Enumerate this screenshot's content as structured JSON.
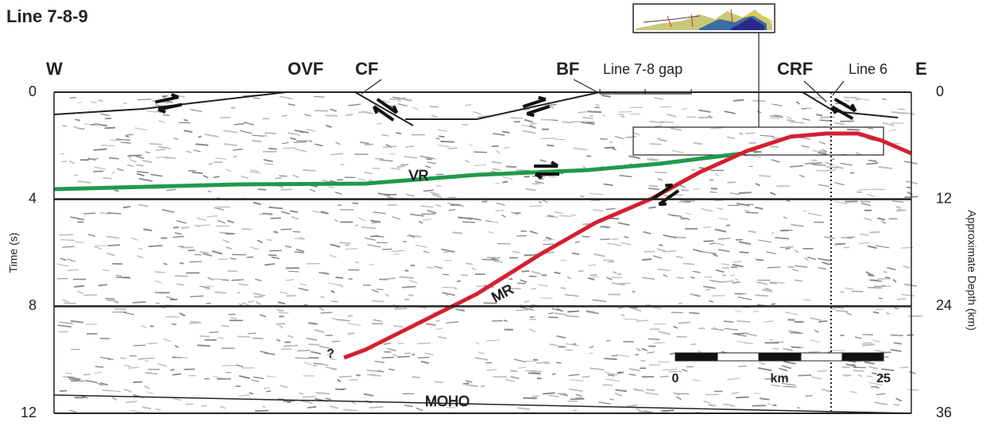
{
  "title": "Line 7-8-9",
  "directions": {
    "west": "W",
    "east": "E"
  },
  "faults": {
    "ovf": "OVF",
    "cf": "CF",
    "bf": "BF",
    "crf": "CRF"
  },
  "annotations": {
    "gap": "Line 7-8 gap",
    "line6": "Line 6",
    "question": "?"
  },
  "reflectors": {
    "vr": "VR",
    "mr": "MR",
    "moho": "MOHO"
  },
  "left_axis": {
    "label": "Time (s)",
    "ticks": [
      0,
      4,
      8,
      12
    ]
  },
  "right_axis": {
    "label": "Approximate Depth (km)",
    "ticks": [
      0,
      12,
      24,
      36
    ]
  },
  "scale_bar": {
    "start": 0,
    "unit": "km",
    "end": 25
  }
}
